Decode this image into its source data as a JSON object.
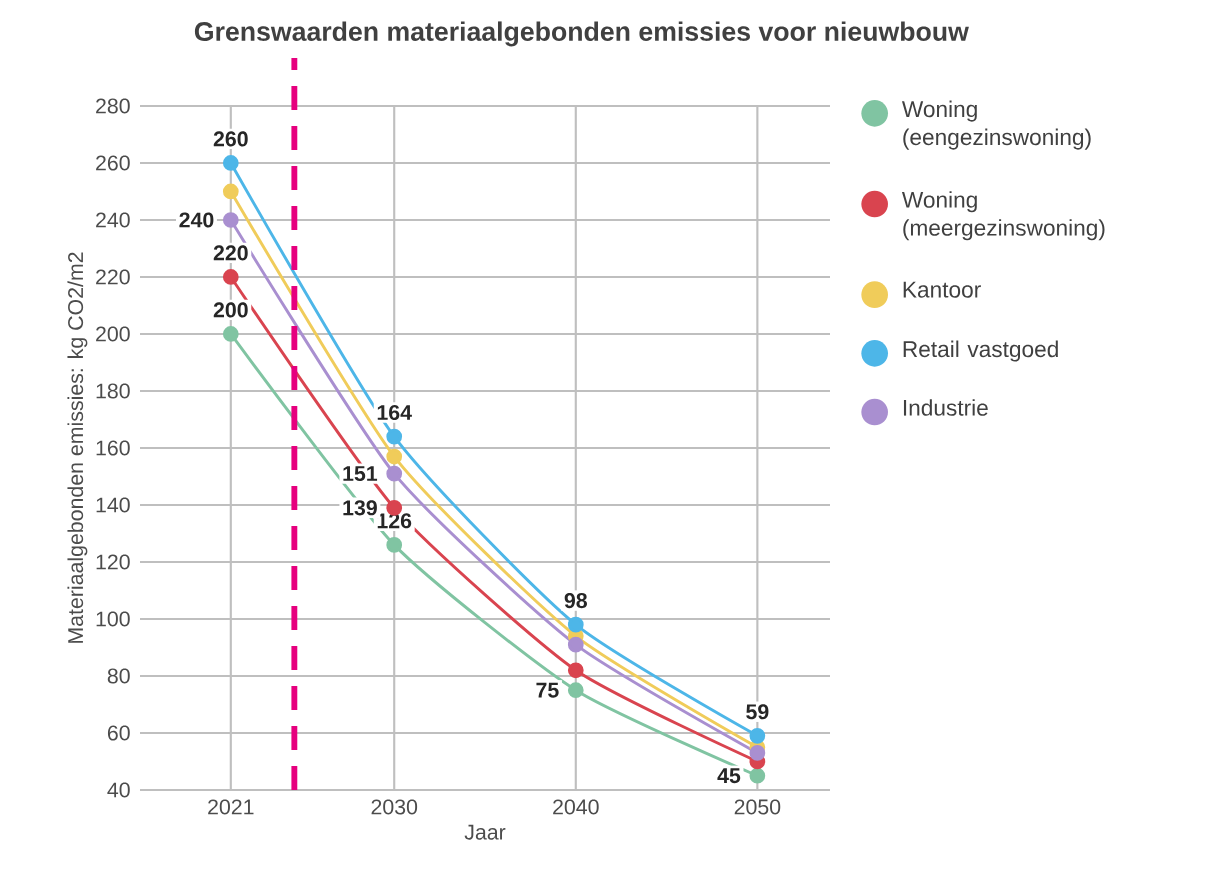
{
  "chart_data": {
    "type": "line",
    "title": "Grenswaarden materiaalgebonden emissies voor nieuwbouw",
    "xlabel": "Jaar",
    "ylabel": "Materiaalgebonden emissies: kg CO2/m2",
    "x": [
      2021,
      2030,
      2040,
      2050
    ],
    "series": [
      {
        "name": "Woning (eengezinswoning)",
        "color": "#80c4a2",
        "values": [
          200,
          126,
          75,
          45
        ],
        "value_labels": [
          "200",
          "126",
          "75",
          "45"
        ]
      },
      {
        "name": "Woning (meergezinswoning)",
        "color": "#d9444f",
        "values": [
          220,
          139,
          82,
          50
        ],
        "value_labels": [
          "220",
          "139",
          null,
          null
        ]
      },
      {
        "name": "Kantoor",
        "color": "#f0cc5a",
        "values": [
          250,
          157,
          94,
          55
        ],
        "value_labels": [
          null,
          null,
          null,
          null
        ]
      },
      {
        "name": "Retail vastgoed",
        "color": "#4db6e8",
        "values": [
          260,
          164,
          98,
          59
        ],
        "value_labels": [
          "260",
          "164",
          "98",
          "59"
        ]
      },
      {
        "name": "Industrie",
        "color": "#a98fd0",
        "values": [
          240,
          151,
          91,
          53
        ],
        "value_labels": [
          "240",
          "151",
          null,
          null
        ]
      }
    ],
    "xlim": [
      2016,
      2054
    ],
    "xticks": [
      2021,
      2030,
      2040,
      2050
    ],
    "ylim": [
      40,
      280
    ],
    "yticks": [
      40,
      60,
      80,
      100,
      120,
      140,
      160,
      180,
      200,
      220,
      240,
      260,
      280
    ],
    "ref_lines": [
      {
        "axis": "x",
        "value": 2024.5,
        "color": "#e6007e",
        "line_style": "dashed"
      }
    ],
    "grid": true,
    "legend": "right",
    "marker": "circle",
    "line_style": "solid"
  }
}
